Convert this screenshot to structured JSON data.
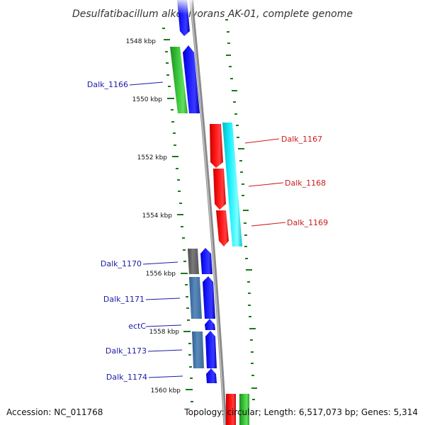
{
  "title": "Desulfatibacillum alkenivorans AK-01, complete genome",
  "footer": {
    "accession": "Accession: NC_011768",
    "summary": "Topology: circular; Length: 6,517,073 bp; Genes: 5,314"
  },
  "colors": {
    "backbone": "#8c8c8c",
    "tick": "#1a7a1a",
    "reverse_label": "#1a1aa6",
    "forward_label": "#cc1a1a",
    "blue": "#1414f0",
    "green": "#3cc43c",
    "red": "#f01414",
    "cyan": "#14e6f0",
    "gray": "#6e6e6e",
    "steelblue": "#4a7aaa"
  },
  "kbp_labels": [
    "1548 kbp",
    "1550 kbp",
    "1552 kbp",
    "1554 kbp",
    "1556 kbp",
    "1558 kbp",
    "1560 kbp"
  ],
  "genes": [
    {
      "name": "Dalk_1166",
      "strand": "reverse"
    },
    {
      "name": "Dalk_1167",
      "strand": "forward"
    },
    {
      "name": "Dalk_1168",
      "strand": "forward"
    },
    {
      "name": "Dalk_1169",
      "strand": "forward"
    },
    {
      "name": "Dalk_1170",
      "strand": "reverse"
    },
    {
      "name": "Dalk_1171",
      "strand": "reverse"
    },
    {
      "name": "ectC",
      "strand": "reverse"
    },
    {
      "name": "Dalk_1173",
      "strand": "reverse"
    },
    {
      "name": "Dalk_1174",
      "strand": "reverse"
    }
  ]
}
